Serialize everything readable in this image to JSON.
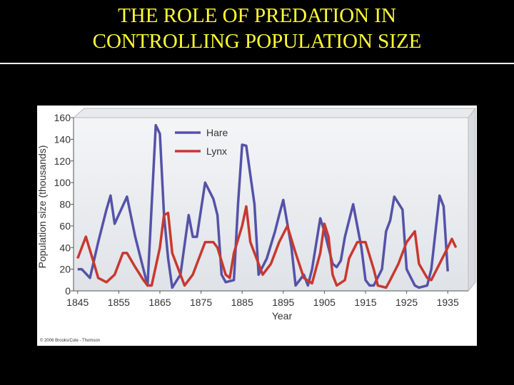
{
  "chart_data": {
    "type": "line",
    "title": [
      "THE ROLE OF PREDATION IN",
      "CONTROLLING POPULATION SIZE"
    ],
    "x_label": "Year",
    "y_label": "Population size (thousands)",
    "credit": "© 2006 Brooks/Cole - Thomson",
    "legend": "upper left",
    "grid": false,
    "xlim": [
      1844,
      1940
    ],
    "ylim": [
      0,
      160
    ],
    "xticks": [
      1845,
      1855,
      1865,
      1875,
      1885,
      1895,
      1905,
      1915,
      1925,
      1935
    ],
    "yticks": [
      0,
      20,
      40,
      60,
      80,
      100,
      120,
      140,
      160
    ],
    "series": [
      {
        "name": "Hare",
        "color": "#5552a8",
        "x": [
          1845,
          1846,
          1848,
          1850,
          1852,
          1853,
          1854,
          1857,
          1859,
          1861,
          1862,
          1864,
          1865,
          1866,
          1867,
          1868,
          1870,
          1872,
          1873,
          1874,
          1876,
          1878,
          1879,
          1880,
          1881,
          1883,
          1884,
          1885,
          1886,
          1888,
          1889,
          1891,
          1893,
          1894,
          1895,
          1897,
          1898,
          1900,
          1901,
          1902,
          1904,
          1905,
          1907,
          1908,
          1909,
          1910,
          1912,
          1914,
          1915,
          1916,
          1917,
          1919,
          1920,
          1921,
          1922,
          1924,
          1925,
          1927,
          1928,
          1930,
          1931,
          1933,
          1934,
          1935
        ],
        "values": [
          20,
          20,
          12,
          45,
          75,
          88,
          62,
          87,
          50,
          20,
          5,
          153,
          145,
          70,
          30,
          3,
          15,
          70,
          50,
          50,
          100,
          85,
          70,
          15,
          8,
          10,
          80,
          135,
          134,
          80,
          15,
          30,
          55,
          70,
          84,
          40,
          5,
          15,
          5,
          20,
          67,
          55,
          25,
          22,
          28,
          50,
          80,
          40,
          10,
          5,
          5,
          20,
          55,
          65,
          87,
          75,
          20,
          5,
          3,
          5,
          20,
          88,
          78,
          18
        ]
      },
      {
        "name": "Lynx",
        "color": "#c8382f",
        "x": [
          1845,
          1847,
          1849,
          1850,
          1852,
          1854,
          1856,
          1857,
          1859,
          1861,
          1862,
          1863,
          1865,
          1866,
          1867,
          1868,
          1870,
          1871,
          1873,
          1874,
          1875,
          1876,
          1878,
          1879,
          1881,
          1882,
          1883,
          1885,
          1886,
          1887,
          1889,
          1890,
          1892,
          1894,
          1896,
          1898,
          1900,
          1902,
          1904,
          1905,
          1906,
          1907,
          1908,
          1910,
          1911,
          1913,
          1915,
          1917,
          1918,
          1920,
          1921,
          1923,
          1925,
          1927,
          1928,
          1930,
          1931,
          1933,
          1935,
          1936,
          1937
        ],
        "values": [
          30,
          50,
          25,
          12,
          8,
          15,
          35,
          35,
          22,
          10,
          5,
          5,
          40,
          70,
          72,
          35,
          15,
          5,
          15,
          25,
          35,
          45,
          45,
          40,
          15,
          12,
          35,
          60,
          78,
          45,
          25,
          15,
          25,
          45,
          60,
          35,
          12,
          7,
          35,
          62,
          50,
          15,
          5,
          10,
          30,
          45,
          45,
          20,
          5,
          3,
          10,
          25,
          45,
          55,
          25,
          12,
          10,
          25,
          40,
          48,
          40
        ]
      }
    ]
  }
}
